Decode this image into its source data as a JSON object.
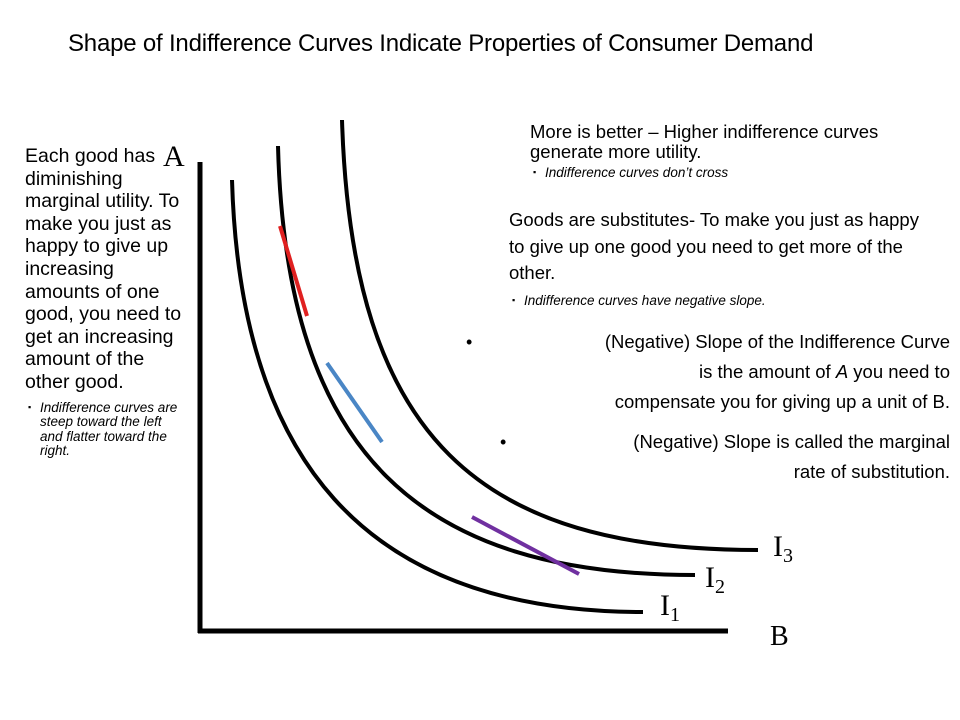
{
  "title": "Shape of Indifference Curves Indicate Properties of Consumer Demand",
  "left": {
    "main": "Each good has diminishing marginal utility. To make you just as happy to give up increasing amounts of one good, you need to get an increasing amount of the other good.",
    "sub": "Indifference curves are steep toward the left and flatter toward the right."
  },
  "right": {
    "more_better": "More is better – Higher indifference curves generate more utility.",
    "more_better_sub": "Indifference curves don’t cross",
    "substitutes": "Goods are substitutes- To make you just as happy to give up one good you need to get more of the other.",
    "substitutes_sub": "Indifference curves have negative slope.",
    "slope_line1": "(Negative) Slope of the Indifference Curve",
    "slope_line2_pre": "is the amount of ",
    "slope_line2_var": "A",
    "slope_line2_post": " you need to",
    "slope_line3": "compensate you for giving up a unit of B.",
    "mrs_line1": "(Negative) Slope is called the marginal",
    "mrs_line2": "rate of substitution."
  },
  "diagram": {
    "axis_y_label": "A",
    "axis_x_label": "B",
    "curves": [
      {
        "letter": "I",
        "sub": "1"
      },
      {
        "letter": "I",
        "sub": "2"
      },
      {
        "letter": "I",
        "sub": "3"
      }
    ],
    "tangent_colors": {
      "red": "#e02020",
      "blue": "#4a86c5",
      "purple": "#7030a0"
    }
  }
}
